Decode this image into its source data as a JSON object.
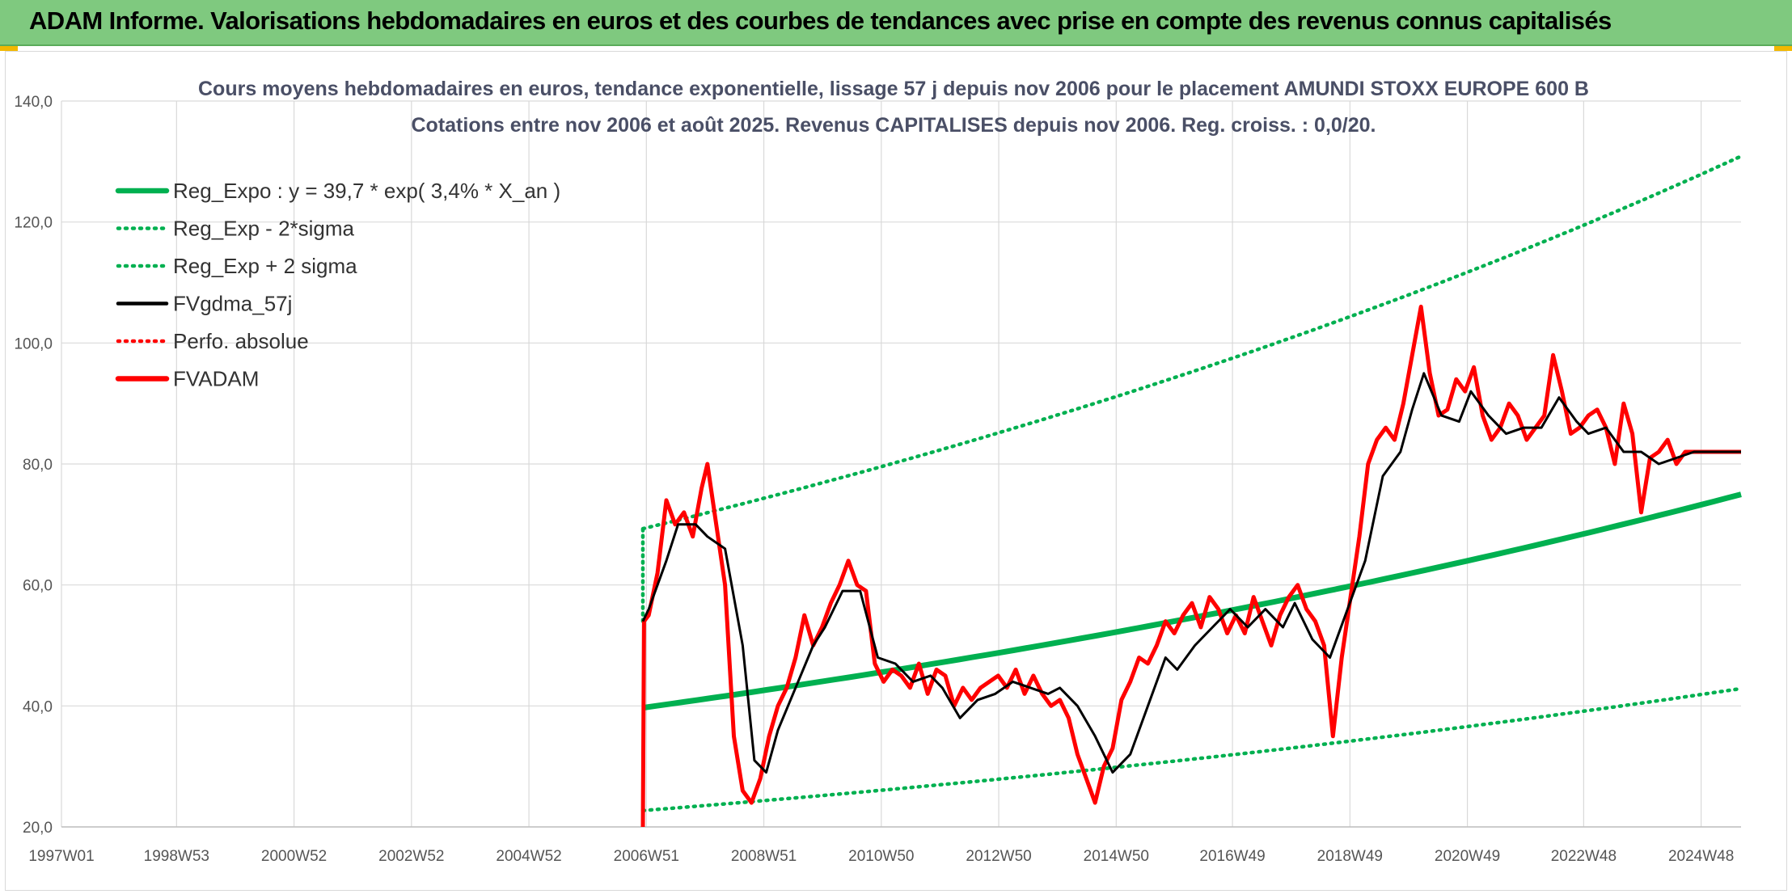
{
  "banner": {
    "title": "ADAM Informe. Valorisations hebdomadaires en euros et des courbes de tendances avec prise en compte des revenus connus capitalisés"
  },
  "colors": {
    "banner_bg": "#7fc97f",
    "trend_green": "#00b050",
    "smooth_black": "#000000",
    "price_red": "#ff0000",
    "grid": "#d9d9d9"
  },
  "chart_data": {
    "type": "line",
    "title": "Cours moyens hebdomadaires en euros, tendance exponentielle, lissage 57 j depuis nov 2006 pour le placement AMUNDI STOXX EUROPE 600 B",
    "subtitle": "Cotations entre nov 2006 et août 2025. Revenus CAPITALISES depuis nov 2006. Reg. croiss. : 0,0/20.",
    "xlabel": "",
    "ylabel": "",
    "x_range": [
      1997.0,
      2025.6
    ],
    "ylim": [
      20,
      140
    ],
    "y_ticks": [
      20,
      40,
      60,
      80,
      100,
      120,
      140
    ],
    "y_tick_labels": [
      "20,0",
      "40,0",
      "60,0",
      "80,0",
      "100,0",
      "120,0",
      "140,0"
    ],
    "x_ticks": [
      1997.0,
      1998.96,
      2000.96,
      2002.96,
      2004.96,
      2006.96,
      2008.96,
      2010.96,
      2012.96,
      2014.96,
      2016.94,
      2018.94,
      2020.94,
      2022.92,
      2024.92
    ],
    "x_tick_labels": [
      "1997W01",
      "1998W53",
      "2000W52",
      "2002W52",
      "2004W52",
      "2006W51",
      "2008W51",
      "2010W50",
      "2012W50",
      "2014W50",
      "2016W49",
      "2018W49",
      "2020W49",
      "2022W48",
      "2024W48"
    ],
    "grid": true,
    "legend_position": "top-left",
    "legend": [
      {
        "label": "Reg_Expo : y = 39,7 * exp( 3,4% *  X_an )",
        "style": "solid",
        "color": "#00b050"
      },
      {
        "label": "Reg_Exp - 2*sigma",
        "style": "dotted",
        "color": "#00b050"
      },
      {
        "label": "Reg_Exp + 2 sigma",
        "style": "dotted",
        "color": "#00b050"
      },
      {
        "label": "FVgdma_57j",
        "style": "solid",
        "color": "#000000"
      },
      {
        "label": "Perfo. absolue",
        "style": "dotted",
        "color": "#ff0000"
      },
      {
        "label": "FVADAM",
        "style": "solid",
        "color": "#ff0000"
      }
    ],
    "regression": {
      "a": 39.7,
      "rate": 0.034,
      "start": 2006.9,
      "end": 2025.6
    },
    "series": [
      {
        "name": "Reg_Expo : y = 39,7 * exp( 3,4% *  X_an )",
        "x": [
          2006.9,
          2008.0,
          2010.0,
          2012.0,
          2014.0,
          2016.0,
          2018.0,
          2020.0,
          2022.0,
          2024.0,
          2025.6
        ],
        "values": [
          39.7,
          41.3,
          44.1,
          47.3,
          50.6,
          54.2,
          58.0,
          62.1,
          66.5,
          71.2,
          75.2
        ]
      },
      {
        "name": "Reg_Exp - 2*sigma",
        "x": [
          2006.9,
          2008.0,
          2010.0,
          2012.0,
          2014.0,
          2016.0,
          2018.0,
          2020.0,
          2022.0,
          2024.0,
          2025.6
        ],
        "values": [
          22.7,
          23.6,
          25.3,
          27.1,
          29.0,
          31.1,
          33.3,
          35.6,
          38.1,
          40.8,
          43.1
        ]
      },
      {
        "name": "Reg_Exp + 2 sigma",
        "x": [
          2006.9,
          2008.0,
          2010.0,
          2012.0,
          2014.0,
          2016.0,
          2018.0,
          2020.0,
          2022.0,
          2024.0,
          2025.6
        ],
        "values": [
          69.3,
          72.2,
          77.3,
          82.7,
          88.6,
          94.8,
          101.5,
          108.7,
          116.4,
          124.6,
          132.0
        ]
      },
      {
        "name": "FVgdma_57j",
        "x": [
          2006.9,
          2007.0,
          2007.3,
          2007.5,
          2007.8,
          2008.0,
          2008.3,
          2008.6,
          2008.8,
          2009.0,
          2009.2,
          2009.5,
          2009.8,
          2010.0,
          2010.3,
          2010.6,
          2010.9,
          2011.2,
          2011.5,
          2011.8,
          2012.0,
          2012.3,
          2012.6,
          2012.9,
          2013.2,
          2013.5,
          2013.8,
          2014.0,
          2014.3,
          2014.6,
          2014.9,
          2015.2,
          2015.5,
          2015.8,
          2016.0,
          2016.3,
          2016.6,
          2016.9,
          2017.2,
          2017.5,
          2017.8,
          2018.0,
          2018.3,
          2018.6,
          2018.9,
          2019.2,
          2019.5,
          2019.8,
          2020.0,
          2020.2,
          2020.5,
          2020.8,
          2021.0,
          2021.3,
          2021.6,
          2021.9,
          2022.2,
          2022.5,
          2022.8,
          2023.0,
          2023.3,
          2023.6,
          2023.9,
          2024.2,
          2024.5,
          2024.8,
          2025.0,
          2025.3,
          2025.6
        ],
        "values": [
          54,
          56,
          64,
          70,
          70,
          68,
          66,
          50,
          31,
          29,
          36,
          43,
          50,
          53,
          59,
          59,
          48,
          47,
          44,
          45,
          43,
          38,
          41,
          42,
          44,
          43,
          42,
          43,
          40,
          35,
          29,
          32,
          40,
          48,
          46,
          50,
          53,
          56,
          53,
          56,
          53,
          57,
          51,
          48,
          56,
          64,
          78,
          82,
          89,
          95,
          88,
          87,
          92,
          88,
          85,
          86,
          86,
          91,
          87,
          85,
          86,
          82,
          82,
          80,
          81,
          82,
          82,
          82,
          82
        ]
      },
      {
        "name": "FVADAM",
        "x": [
          2006.9,
          2006.92,
          2007.0,
          2007.15,
          2007.3,
          2007.45,
          2007.6,
          2007.75,
          2007.9,
          2008.0,
          2008.15,
          2008.3,
          2008.45,
          2008.6,
          2008.75,
          2008.9,
          2009.05,
          2009.2,
          2009.35,
          2009.5,
          2009.65,
          2009.8,
          2009.95,
          2010.1,
          2010.25,
          2010.4,
          2010.55,
          2010.7,
          2010.85,
          2011.0,
          2011.15,
          2011.3,
          2011.45,
          2011.6,
          2011.75,
          2011.9,
          2012.05,
          2012.2,
          2012.35,
          2012.5,
          2012.65,
          2012.8,
          2012.95,
          2013.1,
          2013.25,
          2013.4,
          2013.55,
          2013.7,
          2013.85,
          2014.0,
          2014.15,
          2014.3,
          2014.45,
          2014.6,
          2014.75,
          2014.9,
          2015.05,
          2015.2,
          2015.35,
          2015.5,
          2015.65,
          2015.8,
          2015.95,
          2016.1,
          2016.25,
          2016.4,
          2016.55,
          2016.7,
          2016.85,
          2017.0,
          2017.15,
          2017.3,
          2017.45,
          2017.6,
          2017.75,
          2017.9,
          2018.05,
          2018.2,
          2018.35,
          2018.5,
          2018.65,
          2018.8,
          2018.95,
          2019.1,
          2019.25,
          2019.4,
          2019.55,
          2019.7,
          2019.85,
          2020.0,
          2020.15,
          2020.3,
          2020.45,
          2020.6,
          2020.75,
          2020.9,
          2021.05,
          2021.2,
          2021.35,
          2021.5,
          2021.65,
          2021.8,
          2021.95,
          2022.1,
          2022.25,
          2022.4,
          2022.55,
          2022.7,
          2022.85,
          2023.0,
          2023.15,
          2023.3,
          2023.45,
          2023.6,
          2023.75,
          2023.9,
          2024.05,
          2024.2,
          2024.35,
          2024.5,
          2024.65,
          2024.8,
          2024.95,
          2025.1,
          2025.2,
          2025.3,
          2025.45,
          2025.6
        ],
        "values": [
          20,
          54,
          55,
          62,
          74,
          70,
          72,
          68,
          76,
          80,
          70,
          60,
          35,
          26,
          24,
          28,
          35,
          40,
          43,
          48,
          55,
          50,
          53,
          57,
          60,
          64,
          60,
          59,
          47,
          44,
          46,
          45,
          43,
          47,
          42,
          46,
          45,
          40,
          43,
          41,
          43,
          44,
          45,
          43,
          46,
          42,
          45,
          42,
          40,
          41,
          38,
          32,
          28,
          24,
          30,
          33,
          41,
          44,
          48,
          47,
          50,
          54,
          52,
          55,
          57,
          53,
          58,
          56,
          52,
          55,
          52,
          58,
          54,
          50,
          55,
          58,
          60,
          56,
          54,
          50,
          35,
          48,
          58,
          68,
          80,
          84,
          86,
          84,
          90,
          98,
          106,
          95,
          88,
          89,
          94,
          92,
          96,
          88,
          84,
          86,
          90,
          88,
          84,
          86,
          88,
          98,
          92,
          85,
          86,
          88,
          89,
          86,
          80,
          90,
          85,
          72,
          81,
          82,
          84,
          80,
          82,
          82,
          82,
          82,
          82,
          82,
          82,
          82
        ],
        "note": "weekly prices estimated from the plotted curve"
      }
    ]
  }
}
